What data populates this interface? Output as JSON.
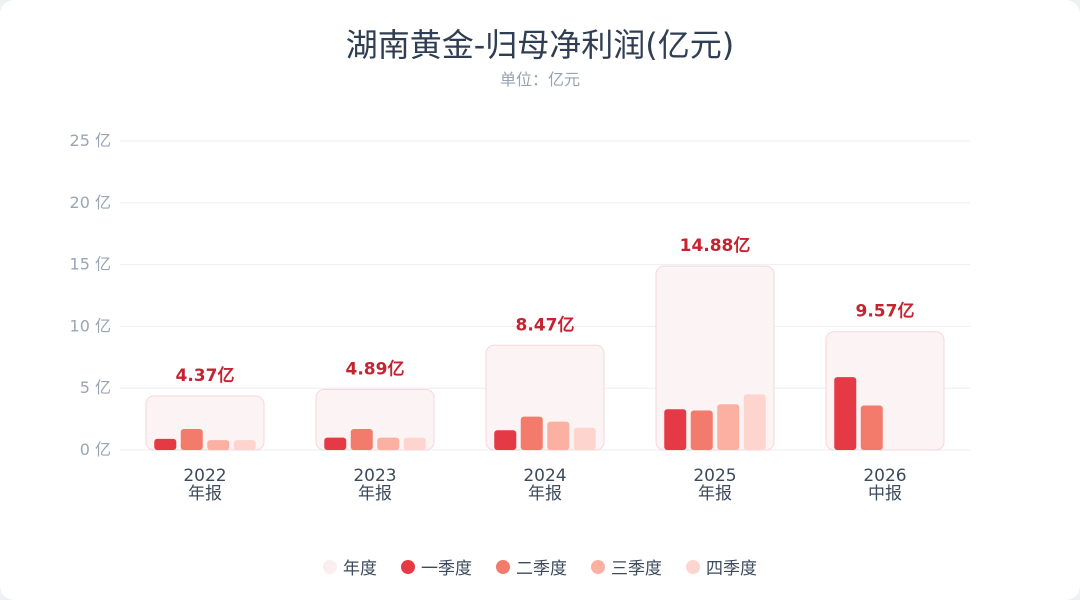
{
  "chart_data": {
    "type": "bar",
    "title": "湖南黄金-归母净利润(亿元)",
    "subtitle": "单位：亿元",
    "unit_suffix": "亿",
    "ylim": [
      0,
      25
    ],
    "y_ticks": [
      0,
      5,
      10,
      15,
      20,
      25
    ],
    "grid": true,
    "legend_position": "bottom",
    "categories": [
      {
        "year": "2022",
        "period": "年报"
      },
      {
        "year": "2023",
        "period": "年报"
      },
      {
        "year": "2024",
        "period": "年报"
      },
      {
        "year": "2025",
        "period": "年报"
      },
      {
        "year": "2026",
        "period": "中报"
      }
    ],
    "totals": [
      4.37,
      4.89,
      8.47,
      14.88,
      9.57
    ],
    "total_labels": [
      "4.37亿",
      "4.89亿",
      "8.47亿",
      "14.88亿",
      "9.57亿"
    ],
    "series": [
      {
        "name": "一季度",
        "color": "#e63946",
        "values": [
          0.9,
          1.0,
          1.6,
          3.3,
          5.9
        ]
      },
      {
        "name": "二季度",
        "color": "#f27b6b",
        "values": [
          1.7,
          1.7,
          2.7,
          3.2,
          3.6
        ]
      },
      {
        "name": "三季度",
        "color": "#fbb0a2",
        "values": [
          0.8,
          1.0,
          2.3,
          3.7,
          null
        ]
      },
      {
        "name": "四季度",
        "color": "#fdd5ce",
        "values": [
          0.8,
          1.0,
          1.8,
          4.5,
          null
        ]
      }
    ],
    "total_series": {
      "name": "年度",
      "color": "#fbeef0"
    }
  }
}
